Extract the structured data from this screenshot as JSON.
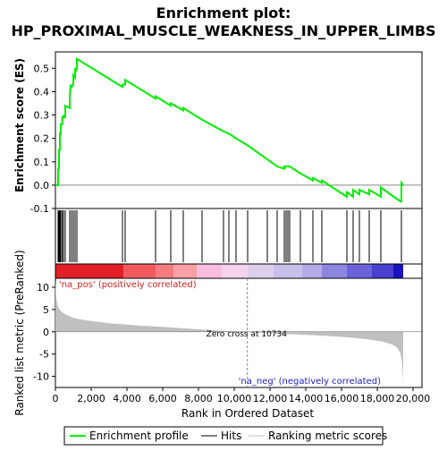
{
  "title_line1": "Enrichment plot:",
  "title_line2": "HP_PROXIMAL_MUSCLE_WEAKNESS_IN_UPPER_LIMBS",
  "chart_data": {
    "type": "line",
    "es_ylabel": "Enrichment score (ES)",
    "metric_ylabel_line1": "Ranked list metric (PreRanked)",
    "xlabel": "Rank in Ordered Dataset",
    "xlim": [
      0,
      20500
    ],
    "es_ylim": [
      -0.1,
      0.57
    ],
    "es_yticks": [
      -0.1,
      0.0,
      0.1,
      0.2,
      0.3,
      0.4,
      0.5
    ],
    "metric_ylim": [
      -12.5,
      12
    ],
    "metric_yticks": [
      -10,
      -5,
      0,
      5,
      10
    ],
    "xticks": [
      0,
      2000,
      4000,
      6000,
      8000,
      10000,
      12000,
      14000,
      16000,
      18000,
      20000
    ],
    "xtick_labels": [
      "0",
      "2,000",
      "4,000",
      "6,000",
      "8,000",
      "10,000",
      "12,000",
      "14,000",
      "16,000",
      "18,000",
      "20,000"
    ],
    "es_yticklabels": [
      "-0.1",
      "0.0",
      "0.1",
      "0.2",
      "0.3",
      "0.4",
      "0.5"
    ],
    "metric_yticklabels": [
      "-10",
      "-5",
      "0",
      "5",
      "10"
    ],
    "dataset_size": 19450,
    "hits": [
      150,
      200,
      250,
      300,
      380,
      450,
      550,
      800,
      900,
      1000,
      1100,
      1200,
      3750,
      3900,
      5600,
      6450,
      7150,
      8200,
      9400,
      9700,
      10100,
      10750,
      11850,
      12400,
      12800,
      12900,
      13000,
      13100,
      13700,
      14400,
      14900,
      16300,
      16650,
      17000,
      17550,
      18200,
      19350
    ],
    "es_curve": [
      [
        0,
        0.0
      ],
      [
        150,
        0.0
      ],
      [
        150,
        0.07
      ],
      [
        200,
        0.07
      ],
      [
        200,
        0.15
      ],
      [
        250,
        0.15
      ],
      [
        250,
        0.22
      ],
      [
        300,
        0.22
      ],
      [
        300,
        0.26
      ],
      [
        380,
        0.26
      ],
      [
        380,
        0.29
      ],
      [
        450,
        0.29
      ],
      [
        450,
        0.3
      ],
      [
        500,
        0.29
      ],
      [
        550,
        0.29
      ],
      [
        550,
        0.34
      ],
      [
        800,
        0.33
      ],
      [
        800,
        0.38
      ],
      [
        850,
        0.43
      ],
      [
        900,
        0.42
      ],
      [
        1000,
        0.43
      ],
      [
        1000,
        0.47
      ],
      [
        1100,
        0.46
      ],
      [
        1100,
        0.5
      ],
      [
        1150,
        0.49
      ],
      [
        1200,
        0.5
      ],
      [
        1200,
        0.54
      ],
      [
        3750,
        0.42
      ],
      [
        3750,
        0.43
      ],
      [
        3900,
        0.43
      ],
      [
        3900,
        0.45
      ],
      [
        5600,
        0.37
      ],
      [
        5600,
        0.38
      ],
      [
        6450,
        0.34
      ],
      [
        6450,
        0.35
      ],
      [
        7150,
        0.32
      ],
      [
        7150,
        0.33
      ],
      [
        8200,
        0.28
      ],
      [
        9400,
        0.23
      ],
      [
        9700,
        0.22
      ],
      [
        10100,
        0.2
      ],
      [
        10750,
        0.17
      ],
      [
        11850,
        0.11
      ],
      [
        12400,
        0.08
      ],
      [
        12800,
        0.07
      ],
      [
        12800,
        0.08
      ],
      [
        13100,
        0.08
      ],
      [
        13700,
        0.05
      ],
      [
        14400,
        0.02
      ],
      [
        14400,
        0.03
      ],
      [
        14900,
        0.01
      ],
      [
        14900,
        0.02
      ],
      [
        16300,
        -0.05
      ],
      [
        16300,
        -0.03
      ],
      [
        16650,
        -0.05
      ],
      [
        16650,
        -0.02
      ],
      [
        17000,
        -0.04
      ],
      [
        17000,
        -0.02
      ],
      [
        17550,
        -0.04
      ],
      [
        17550,
        -0.02
      ],
      [
        18200,
        -0.05
      ],
      [
        18200,
        -0.01
      ],
      [
        19300,
        -0.07
      ],
      [
        19350,
        -0.07
      ],
      [
        19350,
        0.01
      ],
      [
        19450,
        0.0
      ]
    ],
    "metric_curve": [
      [
        0,
        11.5
      ],
      [
        50,
        7.5
      ],
      [
        150,
        5.5
      ],
      [
        300,
        4.6
      ],
      [
        600,
        3.8
      ],
      [
        1000,
        3.1
      ],
      [
        1500,
        2.7
      ],
      [
        2000,
        2.4
      ],
      [
        3000,
        1.9
      ],
      [
        4000,
        1.6
      ],
      [
        5000,
        1.3
      ],
      [
        6000,
        1.1
      ],
      [
        7000,
        0.8
      ],
      [
        8000,
        0.55
      ],
      [
        9000,
        0.3
      ],
      [
        10000,
        0.1
      ],
      [
        10734,
        0.0
      ],
      [
        11500,
        -0.2
      ],
      [
        12500,
        -0.45
      ],
      [
        13500,
        -0.6
      ],
      [
        14500,
        -0.8
      ],
      [
        15500,
        -1.0
      ],
      [
        16500,
        -1.3
      ],
      [
        17500,
        -1.7
      ],
      [
        18300,
        -2.2
      ],
      [
        18800,
        -2.8
      ],
      [
        19100,
        -3.5
      ],
      [
        19300,
        -4.8
      ],
      [
        19380,
        -6.5
      ],
      [
        19420,
        -9.0
      ],
      [
        19450,
        -11.8
      ]
    ],
    "zero_cross": 10734,
    "zero_cross_label": "Zero cross at 10734",
    "pos_label": "'na_pos' (positively correlated)",
    "neg_label": "'na_neg' (negatively correlated)",
    "heat_segments": [
      {
        "from": 0,
        "to": 3800,
        "color": "#e21f26"
      },
      {
        "from": 3800,
        "to": 5600,
        "color": "#f05a5f"
      },
      {
        "from": 5600,
        "to": 6600,
        "color": "#f47c80"
      },
      {
        "from": 6600,
        "to": 7900,
        "color": "#f8a0a4"
      },
      {
        "from": 7900,
        "to": 9300,
        "color": "#f9bedf"
      },
      {
        "from": 9300,
        "to": 10734,
        "color": "#f7d2ec"
      },
      {
        "from": 10734,
        "to": 12200,
        "color": "#dcd0ee"
      },
      {
        "from": 12200,
        "to": 13800,
        "color": "#c8bfeb"
      },
      {
        "from": 13800,
        "to": 14900,
        "color": "#b4abe8"
      },
      {
        "from": 14900,
        "to": 16300,
        "color": "#8d86e0"
      },
      {
        "from": 16300,
        "to": 17700,
        "color": "#6a62d8"
      },
      {
        "from": 17700,
        "to": 18900,
        "color": "#4a40cf"
      },
      {
        "from": 18900,
        "to": 19450,
        "color": "#1a12c0"
      }
    ],
    "colors": {
      "es_line": "#00ee00",
      "hits": "#000000",
      "metric_fill": "#c0c0c0",
      "zero_line": "#8a8a8a"
    }
  },
  "legend": {
    "es_label": "Enrichment profile",
    "hits_label": "Hits",
    "metric_label": "Ranking metric scores"
  }
}
